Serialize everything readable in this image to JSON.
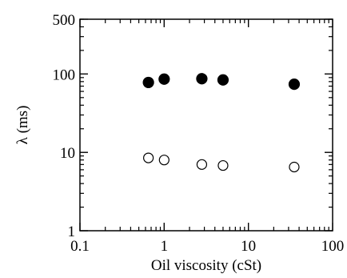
{
  "chart_data": {
    "type": "scatter",
    "xlabel": "Oil viscosity (cSt)",
    "ylabel": "λ (ms)",
    "xscale": "log",
    "yscale": "log",
    "xlim": [
      0.1,
      100
    ],
    "ylim": [
      1,
      500
    ],
    "x_ticks": [
      0.1,
      1,
      10,
      100
    ],
    "x_tick_labels": [
      "0.1",
      "1",
      "10",
      "100"
    ],
    "y_ticks": [
      1,
      10,
      100,
      500
    ],
    "y_tick_labels": [
      "1",
      "10",
      "100",
      "500"
    ],
    "grid": false,
    "series": [
      {
        "marker": "filled-circle",
        "color": "#000000",
        "points": [
          {
            "x": 0.65,
            "y": 78
          },
          {
            "x": 1.0,
            "y": 86
          },
          {
            "x": 2.8,
            "y": 87
          },
          {
            "x": 5.0,
            "y": 84
          },
          {
            "x": 35,
            "y": 74
          }
        ]
      },
      {
        "marker": "open-circle",
        "color": "#000000",
        "points": [
          {
            "x": 0.65,
            "y": 8.5
          },
          {
            "x": 1.0,
            "y": 8.0
          },
          {
            "x": 2.8,
            "y": 7.0
          },
          {
            "x": 5.0,
            "y": 6.8
          },
          {
            "x": 35,
            "y": 6.5
          }
        ]
      }
    ]
  }
}
